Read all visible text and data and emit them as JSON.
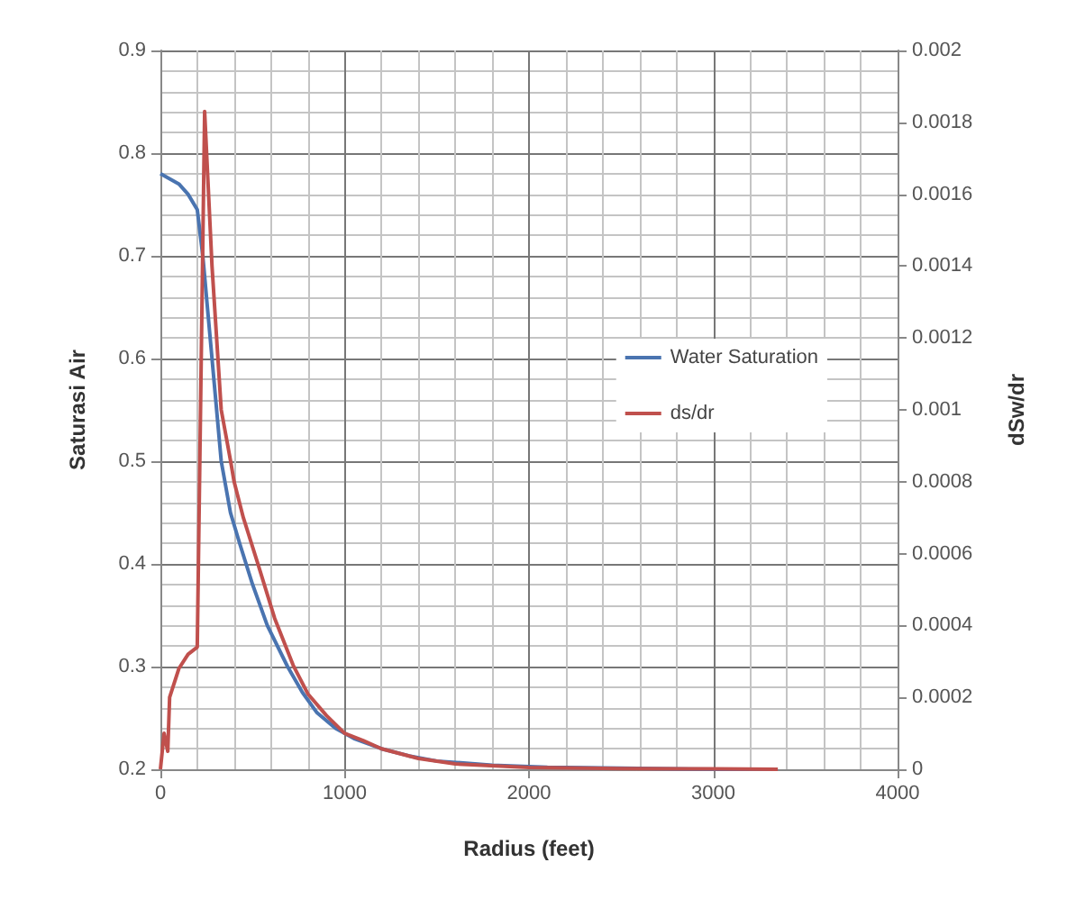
{
  "chart_data": {
    "type": "line",
    "xlabel": "Radius (feet)",
    "ylabel": "Saturasi Air",
    "y2label": "dSw/dr",
    "xlim": [
      0,
      4000
    ],
    "xticks": [
      0,
      1000,
      2000,
      3000,
      4000
    ],
    "ylim": [
      0.2,
      0.9
    ],
    "yticks": [
      0.2,
      0.3,
      0.4,
      0.5,
      0.6,
      0.7,
      0.8,
      0.9
    ],
    "y2lim": [
      0,
      0.002
    ],
    "y2ticks": [
      0,
      0.0002,
      0.0004,
      0.0006,
      0.0008,
      0.001,
      0.0012,
      0.0014,
      0.0016,
      0.0018,
      0.002
    ],
    "grid": true,
    "legend": "right",
    "marker": "none",
    "line_style": "solid",
    "series": [
      {
        "name": "Water Saturation",
        "color": "#4a74b0",
        "x": [
          0,
          50,
          100,
          150,
          200,
          230,
          260,
          300,
          330,
          380,
          430,
          500,
          580,
          690,
          770,
          850,
          950,
          1050,
          1200,
          1350,
          1500,
          1800,
          2100,
          2500,
          3000,
          3350
        ],
        "values": [
          0.78,
          0.775,
          0.77,
          0.76,
          0.745,
          0.7,
          0.64,
          0.56,
          0.5,
          0.45,
          0.42,
          0.38,
          0.34,
          0.3,
          0.275,
          0.255,
          0.24,
          0.23,
          0.22,
          0.213,
          0.208,
          0.204,
          0.202,
          0.201,
          0.2,
          0.2
        ]
      },
      {
        "name": "ds/dr",
        "color": "#c0504d",
        "axis": "y2",
        "x": [
          0,
          20,
          40,
          50,
          100,
          150,
          200,
          240,
          280,
          330,
          380,
          400,
          450,
          530,
          620,
          720,
          800,
          900,
          1000,
          1100,
          1200,
          1400,
          1600,
          2000,
          2500,
          3000,
          3350
        ],
        "values": [
          0,
          0.0001,
          5e-05,
          0.0002,
          0.00028,
          0.00032,
          0.00034,
          0.00183,
          0.0014,
          0.001,
          0.00086,
          0.0008,
          0.0007,
          0.00057,
          0.00042,
          0.00029,
          0.00021,
          0.00015,
          0.0001,
          8e-05,
          5.7e-05,
          3e-05,
          1.5e-05,
          5e-06,
          2e-06,
          1e-06,
          0
        ]
      }
    ]
  }
}
